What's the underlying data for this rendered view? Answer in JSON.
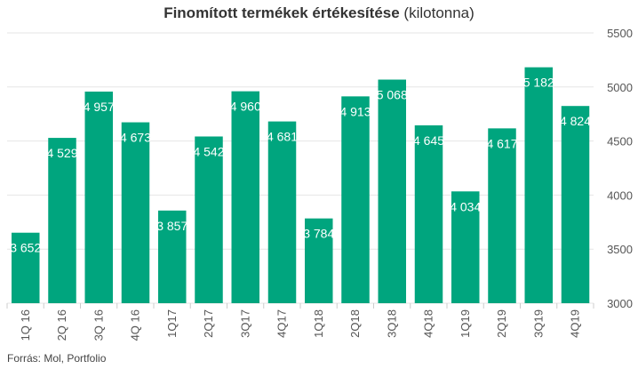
{
  "title": {
    "main": "Finomított termékek értékesítése",
    "sub": "(kilotonna)"
  },
  "source": "Forrás: Mol, Portfolio",
  "colors": {
    "bar": "#00a57e",
    "bar_label": "#ffffff",
    "grid": "#e6e6e6",
    "tick": "#555555"
  },
  "chart_data": {
    "type": "bar",
    "categories": [
      "1Q 16",
      "2Q 16",
      "3Q 16",
      "4Q 16",
      "1Q17",
      "2Q17",
      "3Q17",
      "4Q17",
      "1Q18",
      "2Q18",
      "3Q18",
      "4Q18",
      "1Q19",
      "2Q19",
      "3Q19",
      "4Q19"
    ],
    "values": [
      3652,
      4529,
      4957,
      4673,
      3857,
      4542,
      4960,
      4681,
      3784,
      4913,
      5068,
      4645,
      4034,
      4617,
      5182,
      4824
    ],
    "value_labels": [
      "3 652",
      "4 529",
      "4 957",
      "4 673",
      "3 857",
      "4 542",
      "4 960",
      "4 681",
      "3 784",
      "4 913",
      "5 068",
      "4 645",
      "4 034",
      "4 617",
      "5 182",
      "4 824"
    ],
    "y_ticks": [
      "3000",
      "3500",
      "4000",
      "4500",
      "5000",
      "5500"
    ],
    "ylim": [
      3000,
      5500
    ],
    "y_axis_side": "right",
    "grid": true,
    "legend": "none",
    "xlabel": "",
    "ylabel": ""
  }
}
